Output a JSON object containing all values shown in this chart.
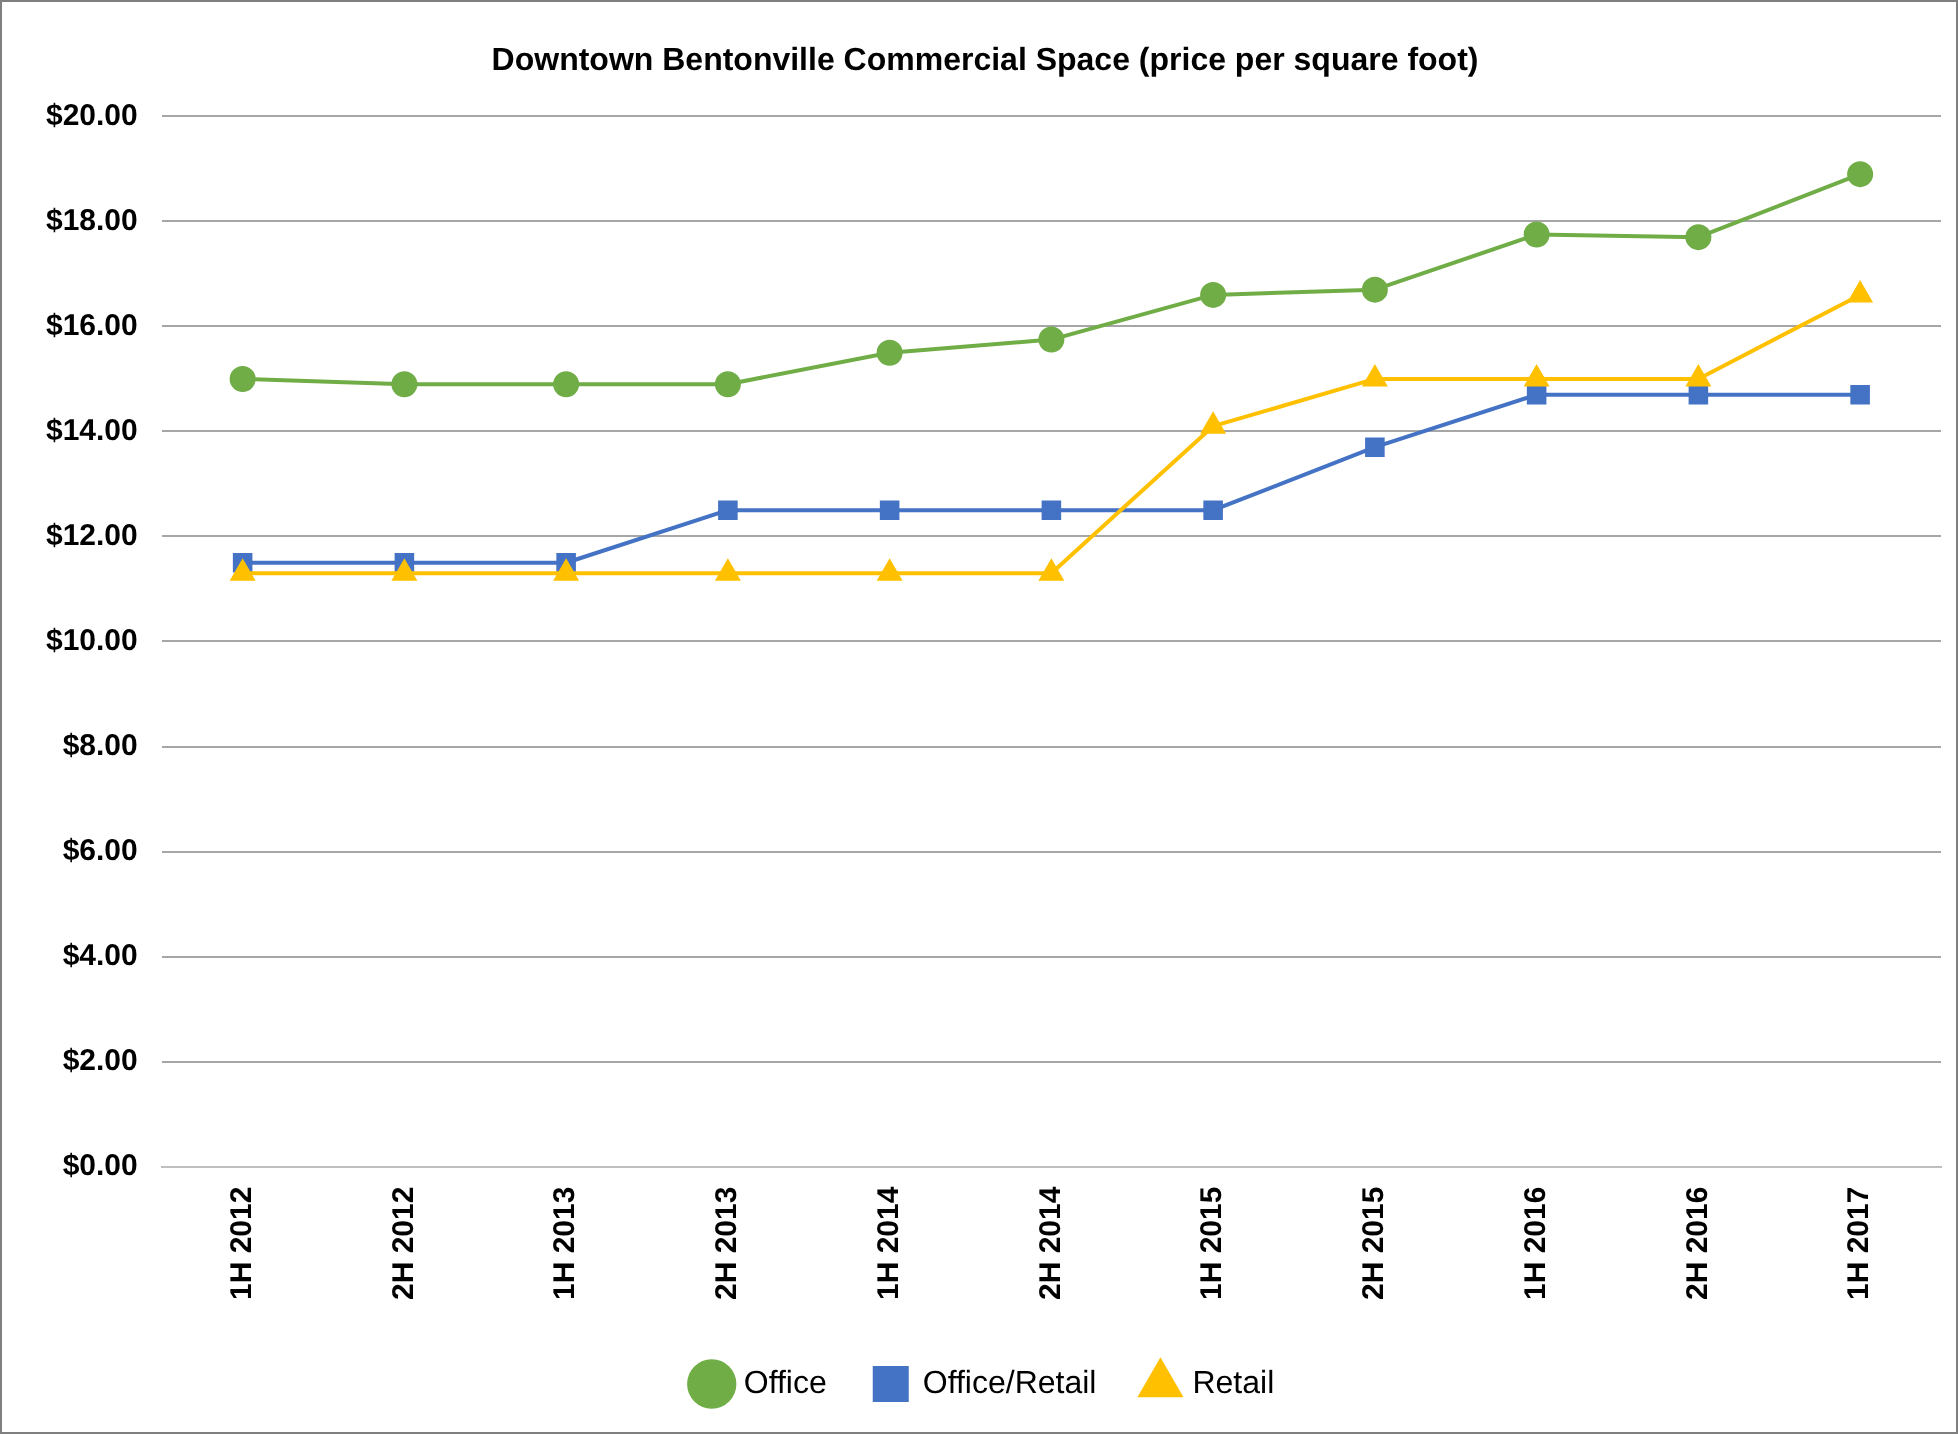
{
  "chart_data": {
    "type": "line",
    "title": "Downtown Bentonville Commercial Space (price per square foot)",
    "categories": [
      "1H 2012",
      "2H 2012",
      "1H 2013",
      "2H 2013",
      "1H 2014",
      "2H 2014",
      "1H 2015",
      "2H 2015",
      "1H 2016",
      "2H 2016",
      "1H 2017"
    ],
    "series": [
      {
        "name": "Office",
        "color": "#70ad47",
        "marker": "circle",
        "values": [
          15.0,
          14.9,
          14.9,
          14.9,
          15.5,
          15.75,
          16.6,
          16.7,
          17.75,
          17.7,
          18.9
        ]
      },
      {
        "name": "Office/Retail",
        "color": "#4472c4",
        "marker": "square",
        "values": [
          11.5,
          11.5,
          11.5,
          12.5,
          12.5,
          12.5,
          12.5,
          13.7,
          14.7,
          14.7,
          14.7
        ]
      },
      {
        "name": "Retail",
        "color": "#ffc000",
        "marker": "triangle",
        "values": [
          11.3,
          11.3,
          11.3,
          11.3,
          11.3,
          11.3,
          14.1,
          15.0,
          15.0,
          15.0,
          16.6
        ]
      }
    ],
    "ylim": [
      0,
      20
    ],
    "yticks": [
      {
        "value": 0,
        "label": "$0.00"
      },
      {
        "value": 2,
        "label": "$2.00"
      },
      {
        "value": 4,
        "label": "$4.00"
      },
      {
        "value": 6,
        "label": "$6.00"
      },
      {
        "value": 8,
        "label": "$8.00"
      },
      {
        "value": 10,
        "label": "$10.00"
      },
      {
        "value": 12,
        "label": "$12.00"
      },
      {
        "value": 14,
        "label": "$14.00"
      },
      {
        "value": 16,
        "label": "$16.00"
      },
      {
        "value": 18,
        "label": "$18.00"
      },
      {
        "value": 20,
        "label": "$20.00"
      }
    ],
    "grid": "y",
    "legend": "bottom",
    "line_style": "solid"
  }
}
